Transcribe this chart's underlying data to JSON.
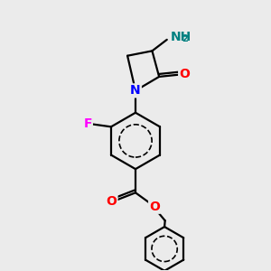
{
  "background_color": "#ebebeb",
  "bond_color": "#000000",
  "atom_colors": {
    "N": "#0000ff",
    "O": "#ff0000",
    "F": "#ff00ff",
    "NH2": "#008080",
    "C": "#000000"
  },
  "figsize": [
    3.0,
    3.0
  ],
  "dpi": 100,
  "lw": 1.6,
  "fs": 9
}
